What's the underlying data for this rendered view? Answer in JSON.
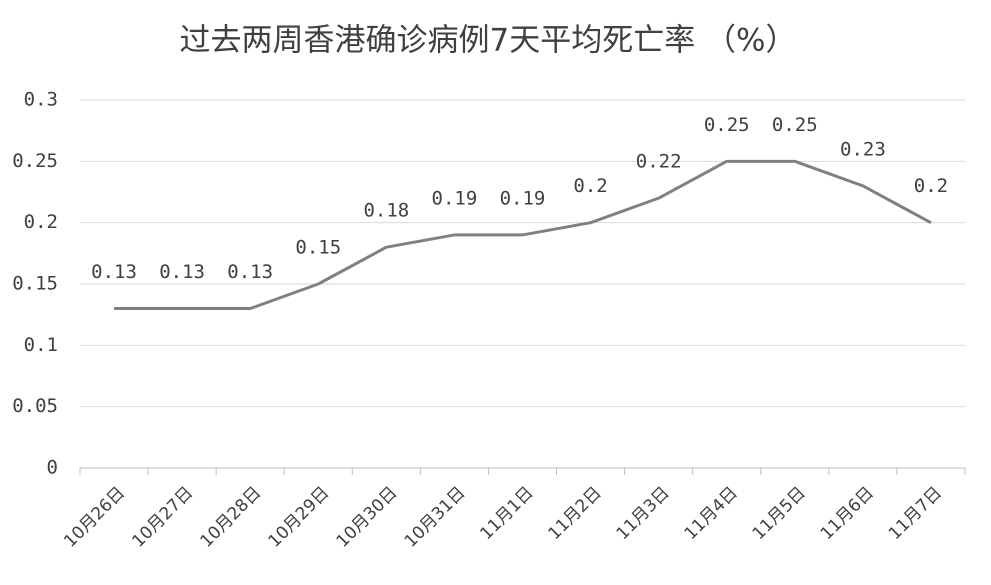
{
  "chart_data": {
    "type": "line",
    "title": "过去两周香港确诊病例7天平均死亡率 （%）",
    "categories": [
      "10月26日",
      "10月27日",
      "10月28日",
      "10月29日",
      "10月30日",
      "10月31日",
      "11月1日",
      "11月2日",
      "11月3日",
      "11月4日",
      "11月5日",
      "11月6日",
      "11月7日"
    ],
    "values": [
      0.13,
      0.13,
      0.13,
      0.15,
      0.18,
      0.19,
      0.19,
      0.2,
      0.22,
      0.25,
      0.25,
      0.23,
      0.2
    ],
    "color": "#808080",
    "ylim": [
      0,
      0.3
    ],
    "yticks": [
      0,
      0.05,
      0.1,
      0.15,
      0.2,
      0.25,
      0.3
    ],
    "grid": true
  }
}
